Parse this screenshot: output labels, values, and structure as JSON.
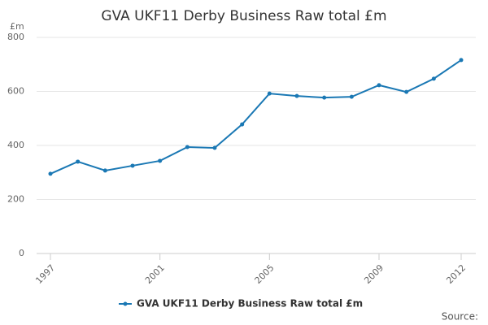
{
  "chart_data": {
    "type": "line",
    "title": "GVA UKF11 Derby Business Raw total £m",
    "y_unit": "£m",
    "source": "Source:",
    "x": [
      1997,
      1998,
      1999,
      2000,
      2001,
      2002,
      2003,
      2004,
      2005,
      2006,
      2007,
      2008,
      2009,
      2010,
      2011,
      2012
    ],
    "series": [
      {
        "name": "GVA UKF11 Derby Business Raw total £m",
        "color": "#1a78b4",
        "values": [
          295,
          340,
          307,
          325,
          343,
          394,
          391,
          478,
          592,
          583,
          577,
          580,
          623,
          598,
          647,
          716
        ]
      }
    ],
    "xlim": [
      1997,
      2012
    ],
    "xticks": [
      1997,
      2001,
      2005,
      2009,
      2012
    ],
    "ylim": [
      0,
      800
    ],
    "yticks": [
      0,
      200,
      400,
      600,
      800
    ],
    "grid": true,
    "legend": "bottom"
  }
}
